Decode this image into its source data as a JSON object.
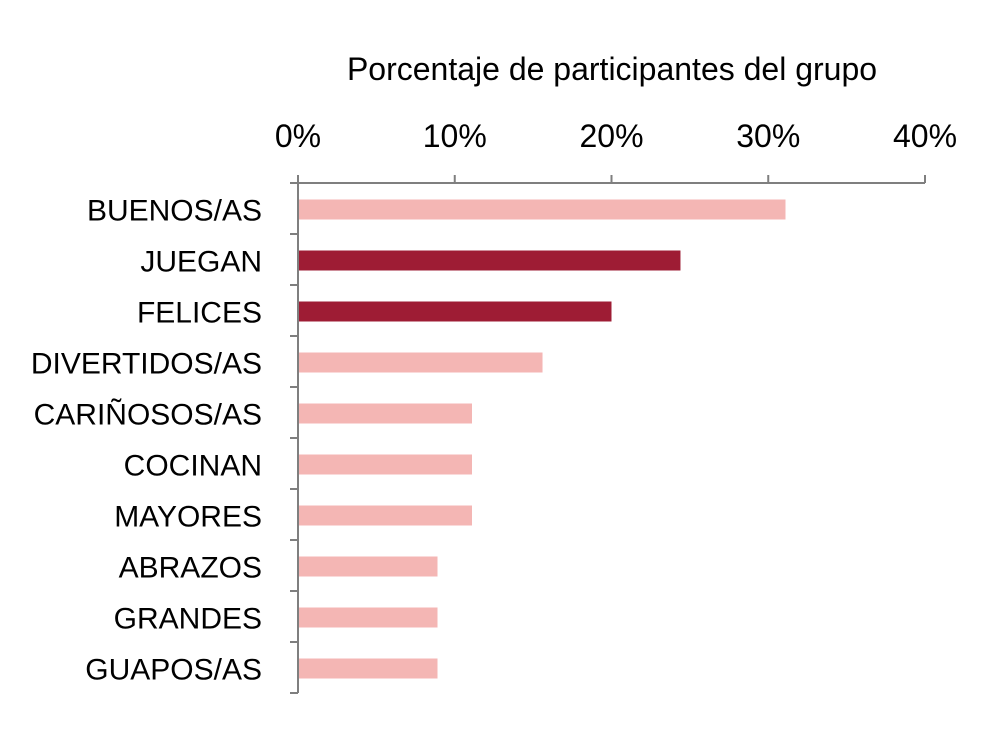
{
  "chart_data": {
    "type": "bar",
    "orientation": "horizontal",
    "title": "",
    "xlabel": "Porcentaje de participantes del grupo",
    "ylabel": "",
    "xlim": [
      0,
      40
    ],
    "x_tick_labels": [
      "0%",
      "10%",
      "20%",
      "30%",
      "40%"
    ],
    "x_axis_position": "top",
    "grid": false,
    "legend": "none",
    "categories": [
      "BUENOS/AS",
      "JUEGAN",
      "FELICES",
      "DIVERTIDOS/AS",
      "CARIÑOSOS/AS",
      "COCINAN",
      "MAYORES",
      "ABRAZOS",
      "GRANDES",
      "GUAPOS/AS"
    ],
    "values": [
      31.1,
      24.4,
      20.0,
      15.6,
      11.1,
      11.1,
      11.1,
      8.9,
      8.9,
      8.9
    ],
    "colors": [
      "#f4b6b4",
      "#9e1c34",
      "#9e1c34",
      "#f4b6b4",
      "#f4b6b4",
      "#f4b6b4",
      "#f4b6b4",
      "#f4b6b4",
      "#f4b6b4",
      "#f4b6b4"
    ],
    "axis_color": "#7f7f7f"
  }
}
